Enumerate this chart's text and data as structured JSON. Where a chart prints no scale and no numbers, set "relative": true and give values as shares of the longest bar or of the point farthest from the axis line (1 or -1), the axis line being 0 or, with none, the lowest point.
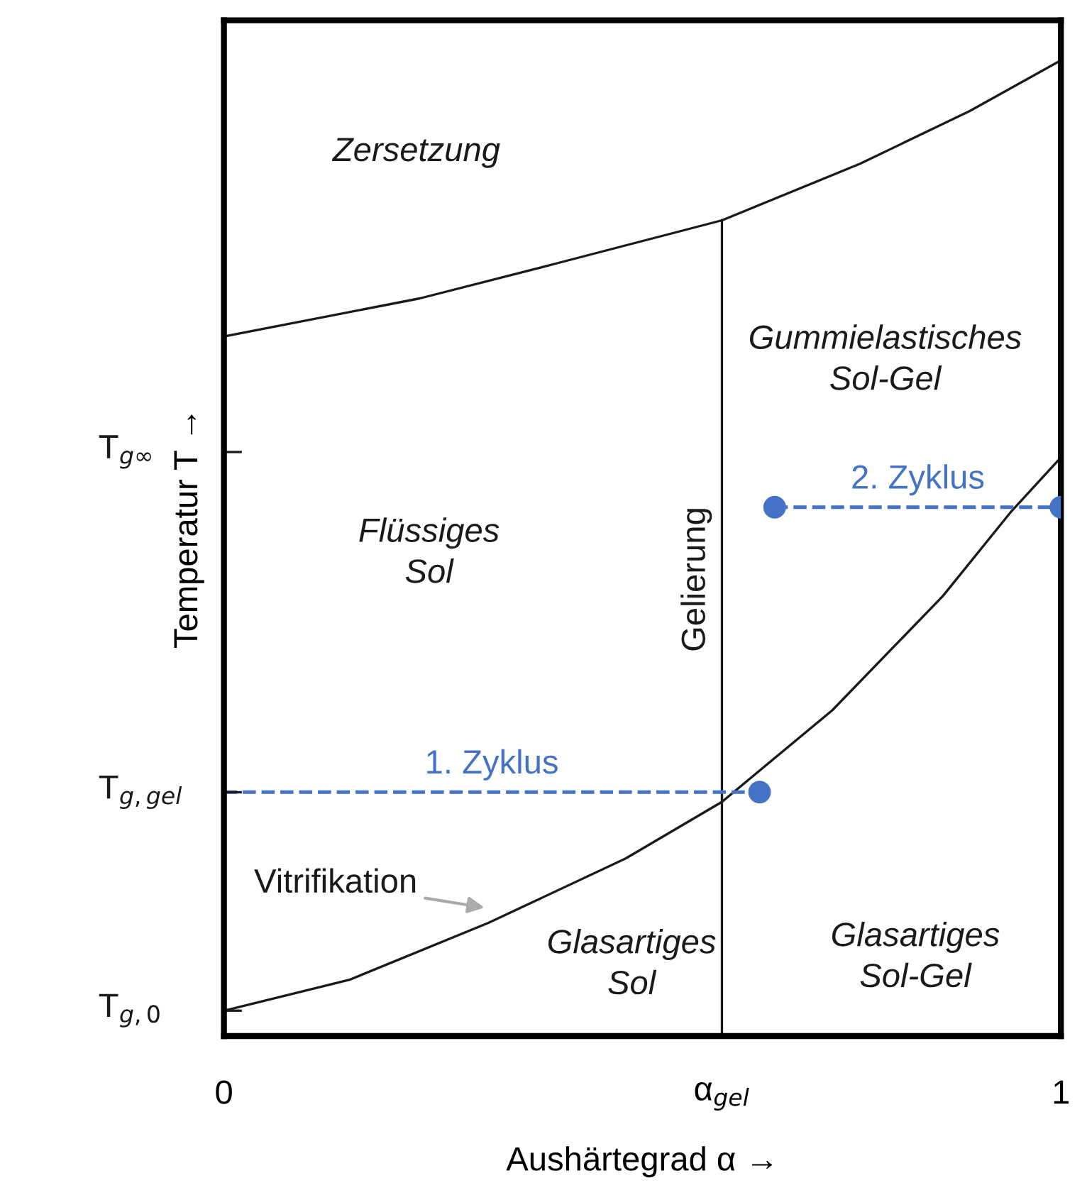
{
  "chart_data": {
    "type": "line",
    "relative": true,
    "xlabel": "Aushärtegrad α →",
    "ylabel": "Temperatur T →",
    "xlim": [
      0,
      1
    ],
    "xticks": [
      0,
      {
        "value": 0.595,
        "label": "α$_{gel}$"
      },
      1
    ],
    "series": [
      {
        "color": "#1a1a1a",
        "x": [
          0,
          0.234,
          0.398,
          0.595,
          0.76,
          0.891,
          1.0
        ],
        "values": [
          0.717,
          0.756,
          0.792,
          0.836,
          0.894,
          0.948,
          1.0
        ]
      },
      {
        "name": "Vitrifikation",
        "color": "#1a1a1a",
        "x": [
          0,
          0.151,
          0.316,
          0.48,
          0.595,
          0.727,
          0.859,
          0.941,
          1.0
        ],
        "values": [
          0.026,
          0.058,
          0.116,
          0.182,
          0.24,
          0.334,
          0.451,
          0.538,
          0.593
        ]
      },
      {
        "name": "Gelierung",
        "color": "#1a1a1a",
        "x": [
          0.595,
          0.595
        ],
        "values": [
          0,
          0.836
        ]
      },
      {
        "name": "1. Zyklus",
        "color": "#4472c4",
        "line_style": "dashed",
        "x": [
          0,
          0.64
        ],
        "values": [
          0.25,
          0.25
        ]
      },
      {
        "name": "2. Zyklus",
        "color": "#4472c4",
        "line_style": "dashed",
        "x": [
          0.658,
          1.0
        ],
        "values": [
          0.542,
          0.542
        ]
      },
      {
        "type": "scatter",
        "color": "#4472c4",
        "marker": "circle",
        "x": [
          0.64,
          0.658,
          1.0
        ],
        "values": [
          0.25,
          0.542,
          0.542
        ]
      }
    ],
    "annotations": [
      "Zersetzung",
      "Gummielastisches\nSol-Gel",
      "Flüssiges\nSol",
      "Glasartiges\nSol",
      "Glasartiges\nSol-Gel",
      "T$_{g,0}$",
      "T$_{g,gel}$",
      "T$_{g∞}$"
    ],
    "grid": false,
    "legend": false
  }
}
